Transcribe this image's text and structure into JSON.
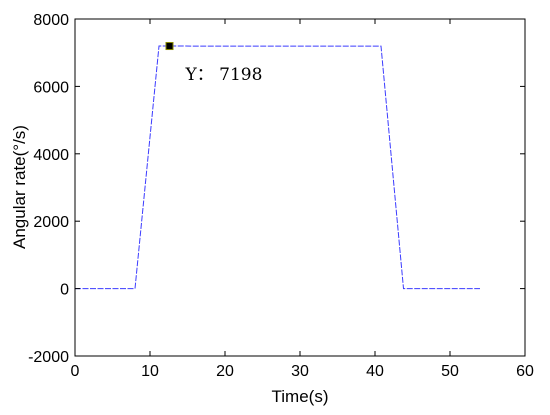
{
  "chart_data": {
    "type": "line",
    "title": "",
    "xlabel": "Time(s)",
    "ylabel": "Angular rate(°/s)",
    "xlim": [
      0,
      60
    ],
    "ylim": [
      -2000,
      8000
    ],
    "xticks": [
      0,
      10,
      20,
      30,
      40,
      50,
      60
    ],
    "yticks": [
      -2000,
      0,
      2000,
      4000,
      6000,
      8000
    ],
    "grid": false,
    "series": [
      {
        "color": "#3b3bff",
        "x": [
          0,
          8.0,
          11.2,
          12.6,
          20,
          30,
          40.8,
          43.8,
          54
        ],
        "y": [
          0,
          0,
          7198,
          7198,
          7195,
          7195,
          7195,
          0,
          0
        ]
      }
    ],
    "annotation": {
      "text": "Y： 7198",
      "x": 12.6,
      "y": 7198
    }
  }
}
